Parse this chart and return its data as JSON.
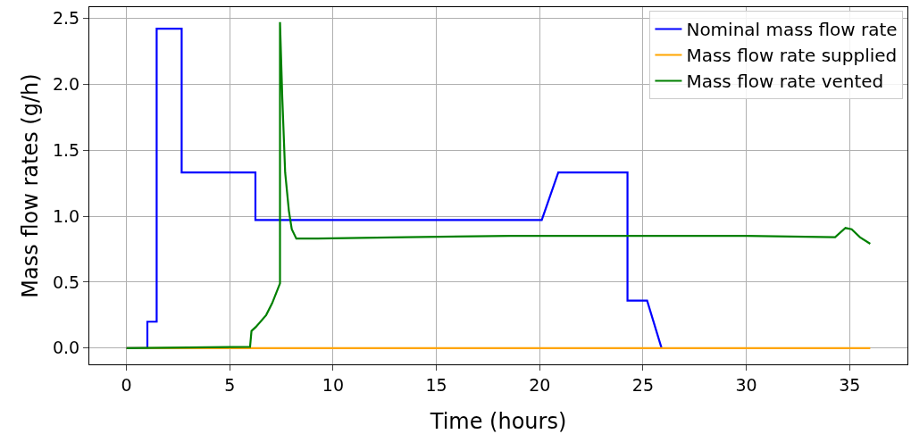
{
  "chart_data": {
    "type": "line",
    "xlabel": "Time (hours)",
    "ylabel": "Mass flow rates (g/h)",
    "xlim": [
      -1.8,
      37.8
    ],
    "ylim": [
      -0.123,
      2.583
    ],
    "xticks": [
      0,
      5,
      10,
      15,
      20,
      25,
      30,
      35
    ],
    "yticks": [
      {
        "value": 0,
        "label": "0.0"
      },
      {
        "value": 0.5,
        "label": "0.5"
      },
      {
        "value": 1,
        "label": "1.0"
      },
      {
        "value": 1.5,
        "label": "1.5"
      },
      {
        "value": 2,
        "label": "2.0"
      },
      {
        "value": 2.5,
        "label": "2.5"
      }
    ],
    "grid": true,
    "legend": "top right",
    "marker": "none",
    "line_style": "solid",
    "series": [
      {
        "name": "Nominal mass flow rate",
        "color": "#0000ff",
        "x": [
          0,
          1.01,
          1.01,
          1.46,
          1.46,
          2.67,
          2.67,
          6.24,
          6.24,
          20.1,
          20.9,
          24.25,
          24.25,
          25.2,
          25.9
        ],
        "values": [
          0,
          0,
          0.2,
          0.2,
          2.42,
          2.42,
          1.33,
          1.33,
          0.97,
          0.97,
          1.33,
          1.33,
          0.36,
          0.36,
          0
        ]
      },
      {
        "name": "Mass flow rate supplied",
        "color": "#ffa500",
        "x": [
          0,
          36
        ],
        "values": [
          0,
          0
        ]
      },
      {
        "name": "Mass flow rate vented",
        "color": "#008000",
        "x": [
          0,
          5.98,
          6.05,
          6.26,
          6.76,
          7.05,
          7.43,
          7.43,
          7.54,
          7.68,
          7.86,
          8.0,
          8.22,
          9.25,
          13.5,
          18.6,
          30.0,
          34.3,
          34.8,
          35.1,
          35.5,
          36.0
        ],
        "values": [
          0,
          0.01,
          0.13,
          0.16,
          0.25,
          0.34,
          0.49,
          2.47,
          1.9,
          1.33,
          1.04,
          0.9,
          0.83,
          0.83,
          0.84,
          0.85,
          0.85,
          0.84,
          0.91,
          0.9,
          0.84,
          0.79
        ]
      }
    ]
  }
}
